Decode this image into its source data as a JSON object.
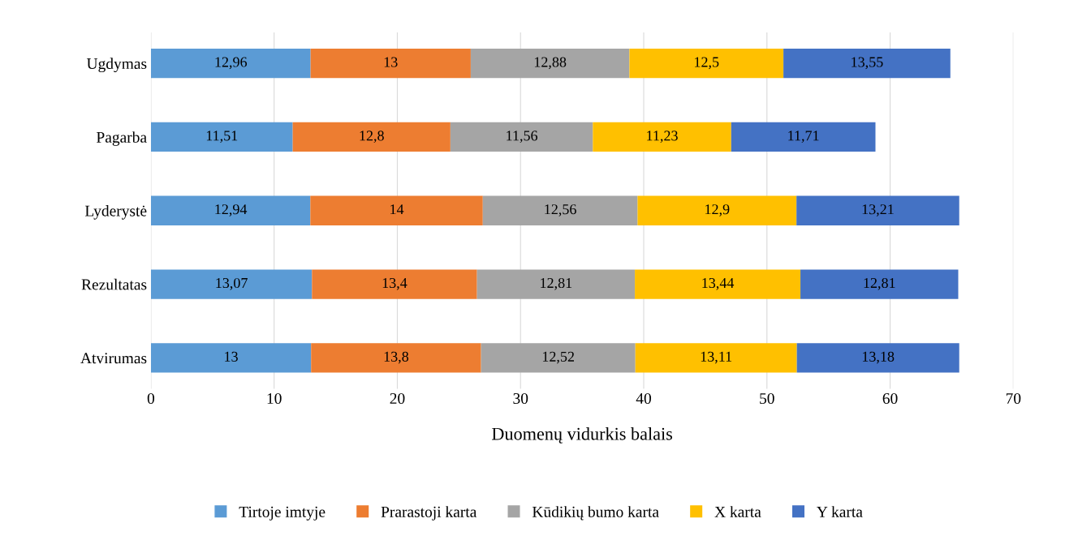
{
  "chart_data": {
    "type": "bar",
    "orientation": "horizontal",
    "stacked": true,
    "xlabel": "Duomenų vidurkis balais",
    "categories": [
      "Ugdymas",
      "Pagarba",
      "Lyderystė",
      "Rezultatas",
      "Atvirumas"
    ],
    "series": [
      {
        "name": "Tirtoje imtyje",
        "color": "#5b9bd5",
        "values": [
          12.96,
          11.51,
          12.94,
          13.07,
          13
        ],
        "value_labels": [
          "12,96",
          "11,51",
          "12,94",
          "13,07",
          "13"
        ]
      },
      {
        "name": "Prarastoji karta",
        "color": "#ed7d31",
        "values": [
          13,
          12.8,
          14,
          13.4,
          13.8
        ],
        "value_labels": [
          "13",
          "12,8",
          "14",
          "13,4",
          "13,8"
        ]
      },
      {
        "name": "Kūdikių bumo karta",
        "color": "#a5a5a5",
        "values": [
          12.88,
          11.56,
          12.56,
          12.81,
          12.52
        ],
        "value_labels": [
          "12,88",
          "11,56",
          "12,56",
          "12,81",
          "12,52"
        ]
      },
      {
        "name": "X karta",
        "color": "#ffc000",
        "values": [
          12.5,
          11.23,
          12.9,
          13.44,
          13.11
        ],
        "value_labels": [
          "12,5",
          "11,23",
          "12,9",
          "13,44",
          "13,11"
        ]
      },
      {
        "name": "Y karta",
        "color": "#4472c4",
        "values": [
          13.55,
          11.71,
          13.21,
          12.81,
          13.18
        ],
        "value_labels": [
          "13,55",
          "11,71",
          "13,21",
          "12,81",
          "13,18"
        ]
      }
    ],
    "xlim": [
      0,
      70
    ],
    "xticks": [
      0,
      10,
      20,
      30,
      40,
      50,
      60,
      70
    ],
    "grid": "x",
    "legend": "bottom"
  }
}
